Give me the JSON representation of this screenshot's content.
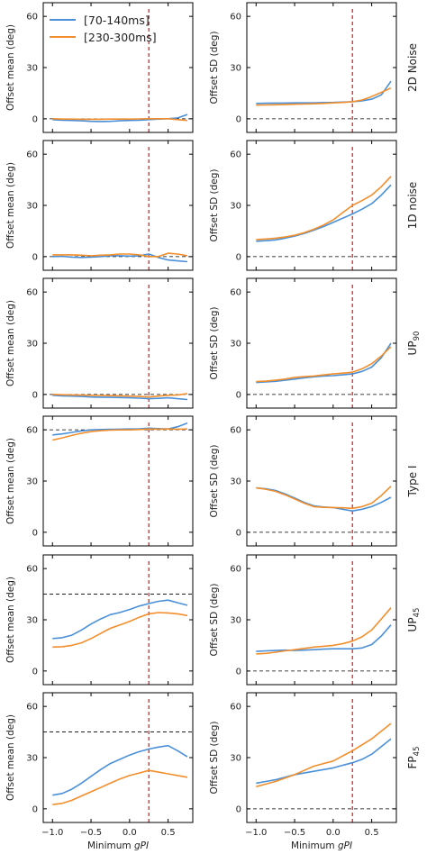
{
  "legend": [
    {
      "name": "[70-140ms]",
      "color": "#4a90d9"
    },
    {
      "name": "[230-300ms]",
      "color": "#f28e2b"
    }
  ],
  "colors": {
    "threshold_line": "#d62728",
    "reference_line": "#000000"
  },
  "x_axis": {
    "label_prefix": "Minimum ",
    "label_italic": "gPI",
    "ticks": [
      -1.0,
      -0.5,
      0.0,
      0.5
    ],
    "tick_labels": [
      "−1.0",
      "−0.5",
      "0.0",
      "0.5"
    ],
    "range": [
      -1.12,
      0.82
    ]
  },
  "threshold_gpi": 0.25,
  "columns": [
    {
      "ylabel": "Offset mean (deg)"
    },
    {
      "ylabel": "Offset SD (deg)"
    }
  ],
  "y_ticks": [
    0,
    30,
    60
  ],
  "rows": [
    {
      "label": "2D Noise",
      "sub": ""
    },
    {
      "label": "1D noise",
      "sub": ""
    },
    {
      "label": "UP",
      "sub": "90"
    },
    {
      "label": "Type I",
      "sub": ""
    },
    {
      "label": "UP",
      "sub": "45"
    },
    {
      "label": "FP",
      "sub": "45"
    }
  ],
  "chart_data": [
    {
      "type": "line",
      "row": "2D Noise",
      "column": "mean",
      "ylabel": "Offset mean (deg)",
      "ylim": [
        -8,
        68
      ],
      "reference_y": 0,
      "x": [
        -1.0,
        -0.875,
        -0.75,
        -0.625,
        -0.5,
        -0.375,
        -0.25,
        -0.125,
        0.0,
        0.125,
        0.25,
        0.375,
        0.5,
        0.625,
        0.75
      ],
      "series": [
        {
          "name": "[70-140ms]",
          "values": [
            -0.5,
            -0.8,
            -1.0,
            -1.2,
            -1.5,
            -1.6,
            -1.5,
            -1.2,
            -1.0,
            -0.8,
            -0.5,
            -0.2,
            0.0,
            0.5,
            2.5
          ]
        },
        {
          "name": "[230-300ms]",
          "values": [
            0.0,
            -0.2,
            -0.2,
            -0.3,
            -0.3,
            -0.3,
            -0.2,
            -0.2,
            -0.2,
            -0.1,
            0.0,
            0.0,
            0.0,
            -0.5,
            -1.0
          ]
        }
      ]
    },
    {
      "type": "line",
      "row": "2D Noise",
      "column": "sd",
      "ylabel": "Offset SD (deg)",
      "ylim": [
        -8,
        68
      ],
      "reference_y": 0,
      "x": [
        -1.0,
        -0.875,
        -0.75,
        -0.625,
        -0.5,
        -0.375,
        -0.25,
        -0.125,
        0.0,
        0.125,
        0.25,
        0.375,
        0.5,
        0.625,
        0.75
      ],
      "series": [
        {
          "name": "[70-140ms]",
          "values": [
            9.0,
            9.1,
            9.2,
            9.2,
            9.3,
            9.3,
            9.3,
            9.5,
            9.6,
            9.8,
            10.0,
            10.5,
            11.5,
            14.0,
            22.0
          ]
        },
        {
          "name": "[230-300ms]",
          "values": [
            8.0,
            8.1,
            8.2,
            8.3,
            8.5,
            8.6,
            8.8,
            9.0,
            9.3,
            9.6,
            10.0,
            11.0,
            13.0,
            15.5,
            18.0
          ]
        }
      ]
    },
    {
      "type": "line",
      "row": "1D noise",
      "column": "mean",
      "ylabel": "Offset mean (deg)",
      "ylim": [
        -8,
        68
      ],
      "reference_y": 0,
      "x": [
        -1.0,
        -0.875,
        -0.75,
        -0.625,
        -0.5,
        -0.375,
        -0.25,
        -0.125,
        0.0,
        0.125,
        0.25,
        0.375,
        0.5,
        0.625,
        0.75
      ],
      "series": [
        {
          "name": "[70-140ms]",
          "values": [
            0.0,
            0.2,
            -0.3,
            -0.5,
            -0.3,
            0.0,
            0.5,
            0.5,
            0.3,
            0.5,
            1.5,
            -0.5,
            -2.0,
            -2.5,
            -3.0
          ]
        },
        {
          "name": "[230-300ms]",
          "values": [
            1.0,
            1.0,
            1.0,
            0.8,
            0.5,
            0.8,
            1.0,
            1.5,
            1.5,
            1.0,
            0.0,
            0.0,
            2.0,
            1.5,
            0.5
          ]
        }
      ]
    },
    {
      "type": "line",
      "row": "1D noise",
      "column": "sd",
      "ylabel": "Offset SD (deg)",
      "ylim": [
        -8,
        68
      ],
      "reference_y": 0,
      "x": [
        -1.0,
        -0.875,
        -0.75,
        -0.625,
        -0.5,
        -0.375,
        -0.25,
        -0.125,
        0.0,
        0.125,
        0.25,
        0.375,
        0.5,
        0.625,
        0.75
      ],
      "series": [
        {
          "name": "[70-140ms]",
          "values": [
            9.0,
            9.3,
            9.8,
            10.8,
            12.0,
            13.6,
            15.5,
            17.6,
            20.0,
            22.5,
            25.0,
            27.8,
            31.0,
            36.0,
            42.0
          ]
        },
        {
          "name": "[230-300ms]",
          "values": [
            10.0,
            10.3,
            10.8,
            11.5,
            12.5,
            14.0,
            16.0,
            18.5,
            21.5,
            25.8,
            30.0,
            32.8,
            36.0,
            41.0,
            47.0
          ]
        }
      ]
    },
    {
      "type": "line",
      "row": "UP90",
      "column": "mean",
      "ylabel": "Offset mean (deg)",
      "ylim": [
        -8,
        68
      ],
      "reference_y": 0,
      "x": [
        -1.0,
        -0.875,
        -0.75,
        -0.625,
        -0.5,
        -0.375,
        -0.25,
        -0.125,
        0.0,
        0.125,
        0.25,
        0.375,
        0.5,
        0.625,
        0.75
      ],
      "series": [
        {
          "name": "[70-140ms]",
          "values": [
            -0.5,
            -0.8,
            -1.0,
            -1.2,
            -1.5,
            -1.6,
            -1.7,
            -1.8,
            -2.0,
            -2.2,
            -2.5,
            -2.3,
            -2.0,
            -2.5,
            -3.0
          ]
        },
        {
          "name": "[230-300ms]",
          "values": [
            0.0,
            -0.2,
            -0.3,
            -0.4,
            -0.5,
            -0.6,
            -0.7,
            -0.8,
            -1.0,
            -1.2,
            -1.5,
            -1.0,
            -0.5,
            -0.3,
            0.5
          ]
        }
      ]
    },
    {
      "type": "line",
      "row": "UP90",
      "column": "sd",
      "ylabel": "Offset SD (deg)",
      "ylim": [
        -8,
        68
      ],
      "reference_y": 0,
      "x": [
        -1.0,
        -0.875,
        -0.75,
        -0.625,
        -0.5,
        -0.375,
        -0.25,
        -0.125,
        0.0,
        0.125,
        0.25,
        0.375,
        0.5,
        0.625,
        0.75
      ],
      "series": [
        {
          "name": "[70-140ms]",
          "values": [
            7.0,
            7.3,
            7.7,
            8.3,
            9.0,
            9.7,
            10.3,
            10.8,
            11.0,
            11.5,
            12.0,
            13.5,
            16.0,
            21.5,
            30.0
          ]
        },
        {
          "name": "[230-300ms]",
          "values": [
            7.5,
            7.8,
            8.3,
            9.0,
            10.0,
            10.4,
            10.8,
            11.4,
            12.0,
            12.5,
            13.0,
            15.0,
            18.0,
            22.5,
            28.0
          ]
        }
      ]
    },
    {
      "type": "line",
      "row": "Type I",
      "column": "mean",
      "ylabel": "Offset mean (deg)",
      "ylim": [
        -8,
        68
      ],
      "reference_y": 60,
      "x": [
        -1.0,
        -0.875,
        -0.75,
        -0.625,
        -0.5,
        -0.375,
        -0.25,
        -0.125,
        0.0,
        0.125,
        0.25,
        0.375,
        0.5,
        0.625,
        0.75
      ],
      "series": [
        {
          "name": "[70-140ms]",
          "values": [
            57.0,
            57.6,
            58.5,
            59.4,
            60.0,
            60.2,
            60.3,
            60.4,
            60.5,
            60.6,
            61.0,
            60.7,
            60.5,
            61.8,
            64.0
          ]
        },
        {
          "name": "[230-300ms]",
          "values": [
            54.0,
            55.3,
            56.7,
            58.0,
            59.0,
            59.5,
            59.8,
            60.0,
            60.0,
            60.2,
            60.5,
            60.4,
            60.5,
            60.4,
            60.5
          ]
        }
      ]
    },
    {
      "type": "line",
      "row": "Type I",
      "column": "sd",
      "ylabel": "Offset SD (deg)",
      "ylim": [
        -8,
        68
      ],
      "reference_y": 0,
      "x": [
        -1.0,
        -0.875,
        -0.75,
        -0.625,
        -0.5,
        -0.375,
        -0.25,
        -0.125,
        0.0,
        0.125,
        0.25,
        0.375,
        0.5,
        0.625,
        0.75
      ],
      "series": [
        {
          "name": "[70-140ms]",
          "values": [
            26.0,
            25.5,
            24.5,
            22.5,
            20.0,
            17.5,
            15.5,
            14.8,
            14.5,
            13.5,
            12.5,
            13.5,
            15.0,
            17.5,
            20.5
          ]
        },
        {
          "name": "[230-300ms]",
          "values": [
            26.0,
            25.2,
            24.0,
            22.0,
            19.5,
            17.0,
            15.0,
            14.6,
            14.5,
            14.3,
            14.0,
            15.0,
            17.0,
            21.5,
            27.0
          ]
        }
      ]
    },
    {
      "type": "line",
      "row": "UP45",
      "column": "mean",
      "ylabel": "Offset mean (deg)",
      "ylim": [
        -8,
        68
      ],
      "reference_y": 45,
      "x": [
        -1.0,
        -0.875,
        -0.75,
        -0.625,
        -0.5,
        -0.375,
        -0.25,
        -0.125,
        0.0,
        0.125,
        0.25,
        0.375,
        0.5,
        0.625,
        0.75
      ],
      "series": [
        {
          "name": "[70-140ms]",
          "values": [
            19.0,
            19.5,
            21.0,
            24.0,
            27.5,
            30.5,
            33.0,
            34.3,
            36.0,
            38.0,
            39.5,
            40.8,
            41.5,
            40.0,
            38.5
          ]
        },
        {
          "name": "[230-300ms]",
          "values": [
            14.0,
            14.2,
            15.0,
            16.5,
            19.0,
            22.0,
            25.0,
            27.0,
            29.0,
            31.5,
            33.5,
            34.2,
            34.0,
            33.5,
            32.5
          ]
        }
      ]
    },
    {
      "type": "line",
      "row": "UP45",
      "column": "sd",
      "ylabel": "Offset SD (deg)",
      "ylim": [
        -8,
        68
      ],
      "reference_y": 0,
      "x": [
        -1.0,
        -0.875,
        -0.75,
        -0.625,
        -0.5,
        -0.375,
        -0.25,
        -0.125,
        0.0,
        0.125,
        0.25,
        0.375,
        0.5,
        0.625,
        0.75
      ],
      "series": [
        {
          "name": "[70-140ms]",
          "values": [
            11.5,
            11.8,
            12.0,
            12.2,
            12.0,
            12.2,
            12.5,
            12.8,
            13.0,
            13.0,
            13.0,
            13.5,
            15.5,
            20.5,
            27.0
          ]
        },
        {
          "name": "[230-300ms]",
          "values": [
            10.0,
            10.3,
            11.0,
            11.8,
            12.5,
            13.2,
            14.0,
            14.5,
            15.0,
            16.0,
            17.5,
            20.0,
            24.0,
            30.5,
            37.0
          ]
        }
      ]
    },
    {
      "type": "line",
      "row": "FP45",
      "column": "mean",
      "ylabel": "Offset mean (deg)",
      "ylim": [
        -8,
        68
      ],
      "reference_y": 45,
      "x": [
        -1.0,
        -0.875,
        -0.75,
        -0.625,
        -0.5,
        -0.375,
        -0.25,
        -0.125,
        0.0,
        0.125,
        0.25,
        0.375,
        0.5,
        0.625,
        0.75
      ],
      "series": [
        {
          "name": "[70-140ms]",
          "values": [
            8.0,
            9.0,
            11.5,
            15.0,
            19.0,
            23.0,
            26.5,
            29.0,
            31.5,
            33.5,
            35.0,
            36.2,
            37.0,
            34.0,
            30.5
          ]
        },
        {
          "name": "[230-300ms]",
          "values": [
            2.5,
            3.2,
            5.0,
            7.5,
            10.0,
            12.5,
            15.0,
            17.5,
            19.5,
            21.0,
            22.5,
            21.5,
            20.5,
            19.5,
            18.5
          ]
        }
      ]
    },
    {
      "type": "line",
      "row": "FP45",
      "column": "sd",
      "ylabel": "Offset SD (deg)",
      "ylim": [
        -8,
        68
      ],
      "reference_y": 0,
      "x": [
        -1.0,
        -0.875,
        -0.75,
        -0.625,
        -0.5,
        -0.375,
        -0.25,
        -0.125,
        0.0,
        0.125,
        0.25,
        0.375,
        0.5,
        0.625,
        0.75
      ],
      "series": [
        {
          "name": "[70-140ms]",
          "values": [
            15.0,
            16.0,
            17.0,
            18.5,
            20.0,
            21.0,
            22.0,
            23.0,
            24.0,
            25.5,
            27.0,
            29.0,
            32.0,
            36.5,
            41.0
          ]
        },
        {
          "name": "[230-300ms]",
          "values": [
            13.0,
            14.5,
            16.0,
            18.0,
            20.0,
            22.5,
            25.0,
            26.5,
            28.0,
            31.0,
            34.0,
            37.5,
            41.0,
            45.5,
            50.0
          ]
        }
      ]
    }
  ]
}
